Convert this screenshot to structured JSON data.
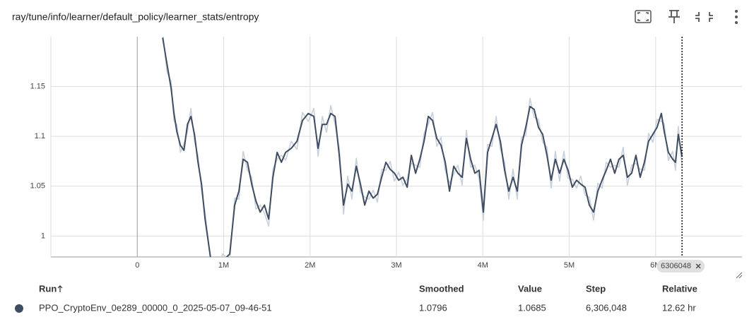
{
  "header": {
    "title": "ray/tune/info/learner/default_policy/learner_stats/entropy"
  },
  "chart_data": {
    "type": "line",
    "x": [
      294000,
      343000,
      392000,
      425000,
      458000,
      499000,
      540000,
      581000,
      621000,
      662000,
      703000,
      744000,
      785000,
      867000,
      990000,
      1070000,
      1128000,
      1177000,
      1226000,
      1276000,
      1325000,
      1374000,
      1423000,
      1472000,
      1521000,
      1570000,
      1619000,
      1668000,
      1717000,
      1783000,
      1848000,
      1913000,
      1979000,
      2044000,
      2093000,
      2142000,
      2191000,
      2240000,
      2289000,
      2338000,
      2387000,
      2436000,
      2485000,
      2535000,
      2584000,
      2633000,
      2682000,
      2731000,
      2780000,
      2829000,
      2878000,
      2927000,
      2977000,
      3026000,
      3075000,
      3124000,
      3173000,
      3222000,
      3271000,
      3320000,
      3369000,
      3418000,
      3467000,
      3516000,
      3565000,
      3614000,
      3663000,
      3712000,
      3761000,
      3810000,
      3859000,
      3908000,
      3957000,
      4006000,
      4055000,
      4105000,
      4154000,
      4203000,
      4252000,
      4301000,
      4350000,
      4399000,
      4448000,
      4497000,
      4546000,
      4595000,
      4644000,
      4693000,
      4742000,
      4791000,
      4840000,
      4889000,
      4938000,
      4987000,
      5036000,
      5085000,
      5134000,
      5183000,
      5233000,
      5282000,
      5331000,
      5380000,
      5429000,
      5478000,
      5527000,
      5576000,
      5625000,
      5674000,
      5723000,
      5772000,
      5821000,
      5870000,
      5919000,
      5968000,
      6017000,
      6067000,
      6099000,
      6148000,
      6198000,
      6230000,
      6263000,
      6306048
    ],
    "series": [
      {
        "color": "#c8d0dc",
        "values": [
          1.205,
          1.165,
          1.155,
          1.115,
          1.112,
          1.084,
          1.092,
          1.105,
          1.128,
          1.095,
          1.081,
          1.045,
          1.024,
          0.96,
          0.982,
          0.975,
          1.038,
          1.037,
          1.085,
          1.066,
          1.059,
          1.027,
          1.031,
          1.023,
          1.01,
          1.067,
          1.077,
          1.081,
          1.076,
          1.095,
          1.087,
          1.124,
          1.115,
          1.128,
          1.08,
          1.12,
          1.104,
          1.131,
          1.112,
          1.088,
          1.022,
          1.06,
          1.037,
          1.078,
          1.044,
          1.039,
          1.037,
          1.046,
          1.034,
          1.067,
          1.066,
          1.075,
          1.055,
          1.064,
          1.051,
          1.057,
          1.073,
          1.071,
          1.069,
          1.103,
          1.112,
          1.124,
          1.09,
          1.099,
          1.066,
          1.053,
          1.062,
          1.071,
          1.051,
          1.106,
          1.069,
          1.071,
          1.058,
          1.016,
          1.092,
          1.09,
          1.12,
          1.087,
          1.074,
          1.037,
          1.067,
          1.037,
          1.099,
          1.101,
          1.138,
          1.119,
          1.117,
          1.094,
          1.089,
          1.048,
          1.085,
          1.055,
          1.085,
          1.058,
          1.057,
          1.048,
          1.06,
          1.041,
          1.039,
          1.016,
          1.053,
          1.048,
          1.074,
          1.069,
          1.071,
          1.069,
          1.089,
          1.051,
          1.071,
          1.073,
          1.067,
          1.066,
          1.103,
          1.094,
          1.117,
          1.115,
          1.113,
          1.076,
          1.085,
          1.066,
          1.11,
          1.0685
        ]
      },
      {
        "color": "#3f4c61",
        "values": [
          1.199,
          1.173,
          1.148,
          1.123,
          1.105,
          1.091,
          1.086,
          1.112,
          1.12,
          1.102,
          1.074,
          1.052,
          1.017,
          0.967,
          0.975,
          0.982,
          1.031,
          1.045,
          1.077,
          1.074,
          1.052,
          1.035,
          1.024,
          1.031,
          1.017,
          1.059,
          1.084,
          1.074,
          1.084,
          1.088,
          1.095,
          1.116,
          1.123,
          1.12,
          1.088,
          1.112,
          1.112,
          1.123,
          1.12,
          1.081,
          1.031,
          1.052,
          1.045,
          1.07,
          1.052,
          1.031,
          1.045,
          1.038,
          1.042,
          1.059,
          1.074,
          1.067,
          1.063,
          1.056,
          1.059,
          1.049,
          1.081,
          1.063,
          1.077,
          1.095,
          1.12,
          1.116,
          1.098,
          1.091,
          1.074,
          1.045,
          1.07,
          1.063,
          1.059,
          1.098,
          1.077,
          1.063,
          1.066,
          1.024,
          1.084,
          1.098,
          1.112,
          1.095,
          1.066,
          1.045,
          1.059,
          1.045,
          1.091,
          1.109,
          1.13,
          1.127,
          1.109,
          1.102,
          1.081,
          1.056,
          1.077,
          1.063,
          1.077,
          1.066,
          1.049,
          1.056,
          1.052,
          1.049,
          1.031,
          1.024,
          1.045,
          1.056,
          1.066,
          1.077,
          1.063,
          1.077,
          1.081,
          1.059,
          1.063,
          1.081,
          1.059,
          1.074,
          1.095,
          1.102,
          1.109,
          1.123,
          1.105,
          1.084,
          1.077,
          1.074,
          1.102,
          1.0796
        ]
      }
    ],
    "xlim": [
      -1000000,
      7000000
    ],
    "xticks": [
      0,
      {
        "value": 1000000,
        "label": "1M"
      },
      {
        "value": 2000000,
        "label": "2M"
      },
      {
        "value": 3000000,
        "label": "3M"
      },
      {
        "value": 4000000,
        "label": "4M"
      },
      {
        "value": 5000000,
        "label": "5M"
      },
      {
        "value": 6000000,
        "label": "6M"
      }
    ],
    "ylim": [
      0.979,
      1.2
    ],
    "yticks": [
      1,
      1.05,
      1.1,
      1.15
    ],
    "grid": true,
    "cursor_step": 6306048
  },
  "table": {
    "columns": [
      "Run",
      "Smoothed",
      "Value",
      "Step",
      "Relative"
    ],
    "rows": [
      [
        "PPO_CryptoEnv_0e289_00000_0_2025-05-07_09-46-51",
        "1.0796",
        "1.0685",
        "6,306,048",
        "12.62 hr"
      ]
    ]
  }
}
